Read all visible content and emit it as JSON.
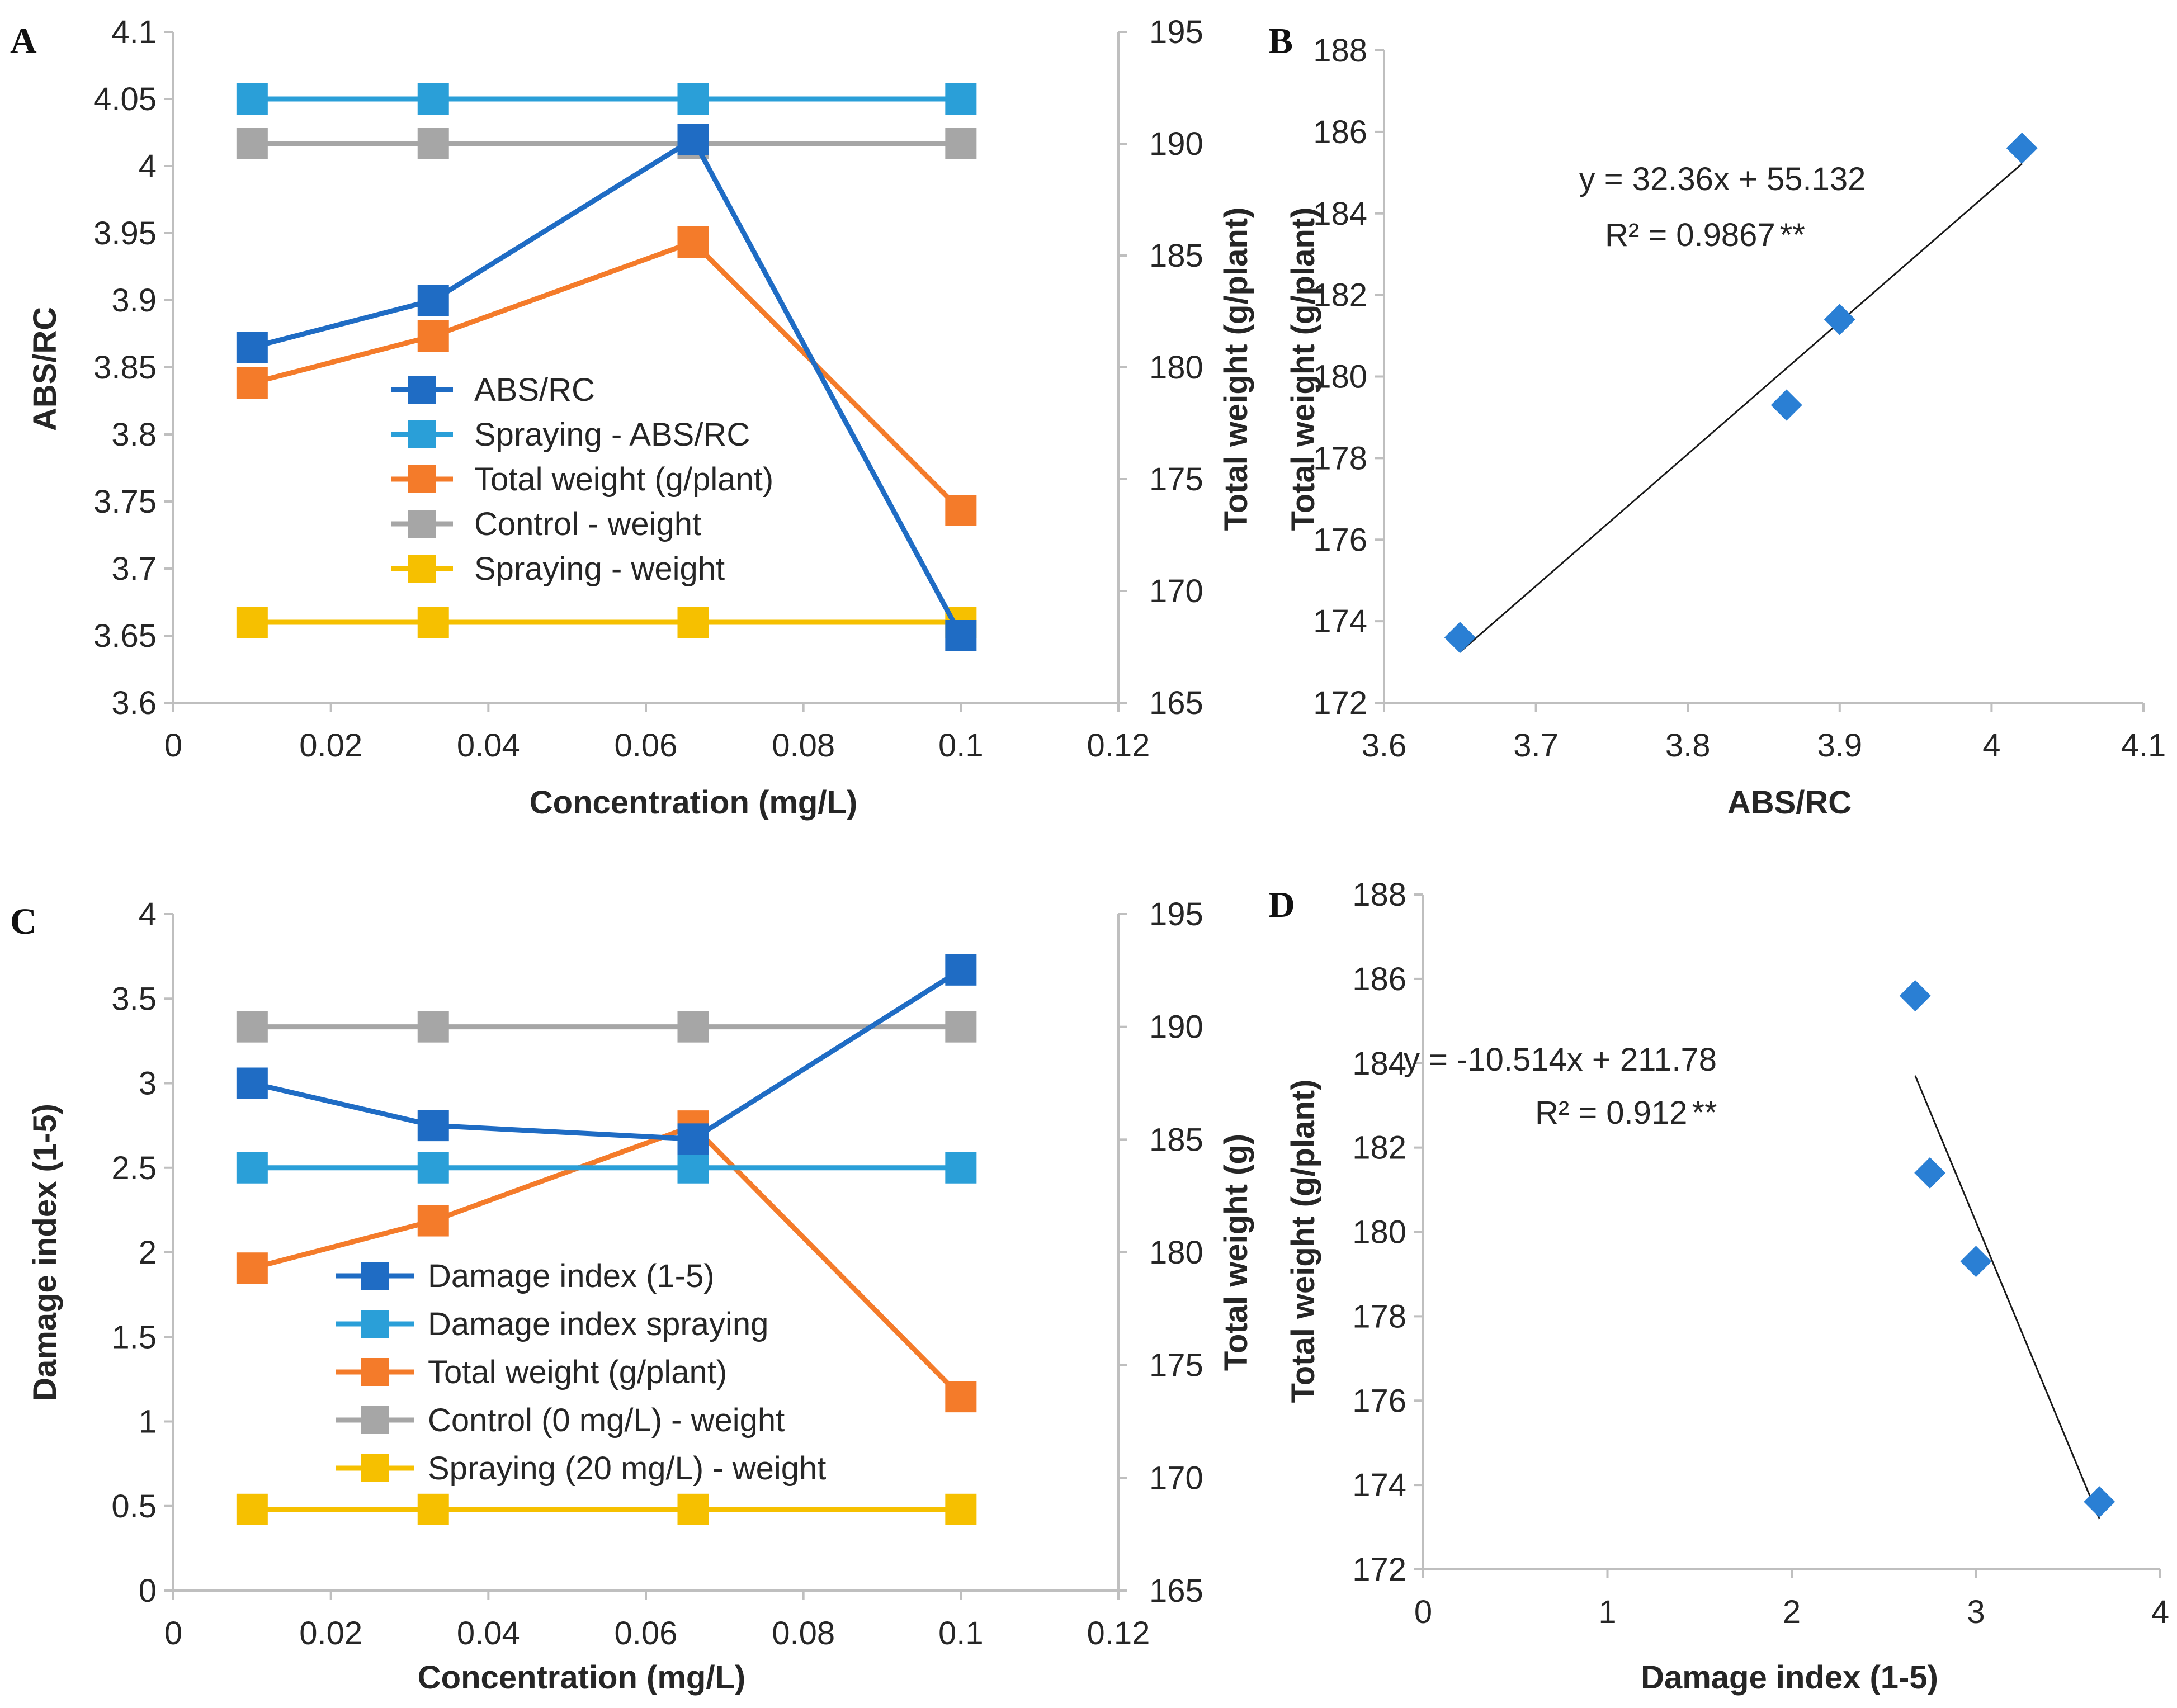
{
  "colors": {
    "abs_rc": "#1f6cc4",
    "spraying_abs": "#2a9fd8",
    "total_weight": "#f47b2a",
    "control": "#a6a6a6",
    "spraying_weight": "#f6c000",
    "scatter": "#2a7fd4",
    "axis": "#bfbfbf",
    "text": "#262626"
  },
  "chart_data": [
    {
      "id": "A",
      "type": "line",
      "panel_label": "A",
      "x": [
        0.01,
        0.033,
        0.066,
        0.1
      ],
      "xlim": [
        0,
        0.12
      ],
      "xticks": [
        "0",
        "0.02",
        "0.04",
        "0.06",
        "0.08",
        "0.1",
        "0.12"
      ],
      "xlabel": "Concentration (mg/L)",
      "ylabel": "ABS/RC",
      "ylim": [
        3.6,
        4.1
      ],
      "yticks": [
        "3.6",
        "3.65",
        "3.7",
        "3.75",
        "3.8",
        "3.85",
        "3.9",
        "3.95",
        "4",
        "4.05",
        "4.1"
      ],
      "y2label": "Total weight (g/plant)",
      "y2lim": [
        165,
        195
      ],
      "y2ticks": [
        "165",
        "170",
        "175",
        "180",
        "185",
        "190",
        "195"
      ],
      "series": [
        {
          "name": "ABS/RC",
          "axis": "left",
          "color": "#1f6cc4",
          "values": [
            3.865,
            3.9,
            4.02,
            3.65
          ]
        },
        {
          "name": "Spraying - ABS/RC",
          "axis": "left",
          "color": "#2a9fd8",
          "values": [
            4.05,
            4.05,
            4.05,
            4.05
          ]
        },
        {
          "name": "Total weight (g/plant)",
          "axis": "right",
          "color": "#f47b2a",
          "values": [
            179.3,
            181.4,
            185.6,
            173.6
          ]
        },
        {
          "name": "Control - weight",
          "axis": "right",
          "color": "#a6a6a6",
          "values": [
            190,
            190,
            190,
            190
          ]
        },
        {
          "name": "Spraying - weight",
          "axis": "right",
          "color": "#f6c000",
          "values": [
            168.6,
            168.6,
            168.6,
            168.6
          ]
        }
      ]
    },
    {
      "id": "B",
      "type": "scatter",
      "panel_label": "B",
      "points": [
        [
          3.65,
          173.6
        ],
        [
          3.865,
          179.3
        ],
        [
          3.9,
          181.4
        ],
        [
          4.02,
          185.6
        ]
      ],
      "xlim": [
        3.6,
        4.1
      ],
      "xticks": [
        "3.6",
        "3.7",
        "3.8",
        "3.9",
        "4",
        "4.1"
      ],
      "ylim": [
        172,
        188
      ],
      "yticks": [
        "172",
        "174",
        "176",
        "178",
        "180",
        "182",
        "184",
        "186",
        "188"
      ],
      "xlabel": "ABS/RC",
      "ylabel": "Total weight (g/plant)",
      "trendline": {
        "slope": 32.36,
        "intercept": 55.132,
        "x_range": [
          3.65,
          4.02
        ]
      },
      "equation": "y = 32.36x + 55.132",
      "r2_label": "R² = 0.9867",
      "significance": "**"
    },
    {
      "id": "C",
      "type": "line",
      "panel_label": "C",
      "x": [
        0.01,
        0.033,
        0.066,
        0.1
      ],
      "xlim": [
        0,
        0.12
      ],
      "xticks": [
        "0",
        "0.02",
        "0.04",
        "0.06",
        "0.08",
        "0.1",
        "0.12"
      ],
      "xlabel": "Concentration (mg/L)",
      "ylabel": "Damage index (1-5)",
      "ylim": [
        0,
        4
      ],
      "yticks": [
        "0",
        "0.5",
        "1",
        "1.5",
        "2",
        "2.5",
        "3",
        "3.5",
        "4"
      ],
      "y2label": "Total weight (g)",
      "y2lim": [
        165,
        195
      ],
      "y2ticks": [
        "165",
        "170",
        "175",
        "180",
        "185",
        "190",
        "195"
      ],
      "series": [
        {
          "name": "Damage index (1-5)",
          "axis": "left",
          "color": "#1f6cc4",
          "values": [
            3.0,
            2.75,
            2.67,
            3.67
          ]
        },
        {
          "name": "Damage index spraying",
          "axis": "left",
          "color": "#2a9fd8",
          "values": [
            2.5,
            2.5,
            2.5,
            2.5
          ]
        },
        {
          "name": "Total weight (g/plant)",
          "axis": "right",
          "color": "#f47b2a",
          "values": [
            179.3,
            181.4,
            185.6,
            173.6
          ]
        },
        {
          "name": "Control (0 mg/L) - weight",
          "axis": "right",
          "color": "#a6a6a6",
          "values": [
            190,
            190,
            190,
            190
          ]
        },
        {
          "name": "Spraying (20 mg/L) - weight",
          "axis": "right",
          "color": "#f6c000",
          "values": [
            168.6,
            168.6,
            168.6,
            168.6
          ]
        }
      ]
    },
    {
      "id": "D",
      "type": "scatter",
      "panel_label": "D",
      "points": [
        [
          2.67,
          185.6
        ],
        [
          2.75,
          181.4
        ],
        [
          3.0,
          179.3
        ],
        [
          3.67,
          173.6
        ]
      ],
      "xlim": [
        0,
        4
      ],
      "xticks": [
        "0",
        "1",
        "2",
        "3",
        "4"
      ],
      "ylim": [
        172,
        188
      ],
      "yticks": [
        "172",
        "174",
        "176",
        "178",
        "180",
        "182",
        "184",
        "186",
        "188"
      ],
      "xlabel": "Damage index (1-5)",
      "ylabel": "Total weight (g/plant)",
      "trendline": {
        "slope": -10.514,
        "intercept": 211.78,
        "x_range": [
          2.67,
          3.67
        ]
      },
      "equation": "y = -10.514x + 211.78",
      "r2_label": "R² = 0.912",
      "significance": "**"
    }
  ]
}
